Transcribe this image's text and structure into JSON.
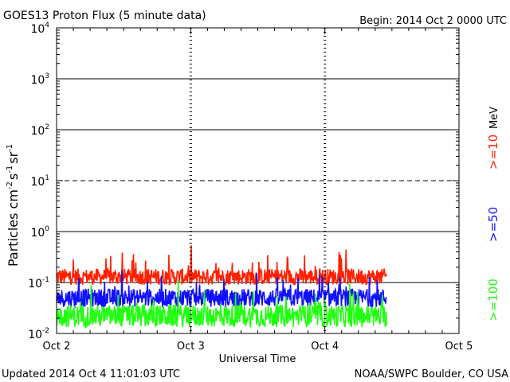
{
  "chart_data": {
    "type": "line",
    "title": "GOES13 Proton Flux (5 minute data)",
    "begin": "Begin: 2014 Oct 2 0000 UTC",
    "xlabel": "Universal Time",
    "ylabel": "Particles cm",
    "ylabel_exp1": "-2",
    "ylabel_mid": "s",
    "ylabel_exp2": "-1",
    "ylabel_end": "sr",
    "ylabel_exp3": "-1",
    "yscale": "log",
    "ylim": [
      0.01,
      10000
    ],
    "yticks": [
      {
        "base": "10",
        "exp": "4"
      },
      {
        "base": "10",
        "exp": "3"
      },
      {
        "base": "10",
        "exp": "2"
      },
      {
        "base": "10",
        "exp": "1"
      },
      {
        "base": "10",
        "exp": "0"
      },
      {
        "base": "10",
        "exp": "-1"
      },
      {
        "base": "10",
        "exp": "-2"
      }
    ],
    "xlim_days": [
      0,
      3
    ],
    "x_ticks": [
      "Oct 2",
      "Oct 3",
      "Oct 4",
      "Oct 5"
    ],
    "data_end_day": 2.46,
    "side_unit": "MeV",
    "series": [
      {
        "name": ">=10",
        "color": "#ff2000",
        "base": 0.13,
        "spread": 0.16,
        "spike": 0.5
      },
      {
        "name": ">=50",
        "color": "#1010ff",
        "base": 0.05,
        "spread": 0.18,
        "spike": 0.42
      },
      {
        "name": ">=100",
        "color": "#20ff10",
        "base": 0.022,
        "spread": 0.22,
        "spike": 0.5
      }
    ],
    "grid": "horizontal lines at each decade; 10^1 dashed"
  },
  "footer": {
    "updated": "Updated 2014 Oct  4 11:01:03 UTC",
    "credit": "NOAA/SWPC Boulder, CO USA"
  }
}
